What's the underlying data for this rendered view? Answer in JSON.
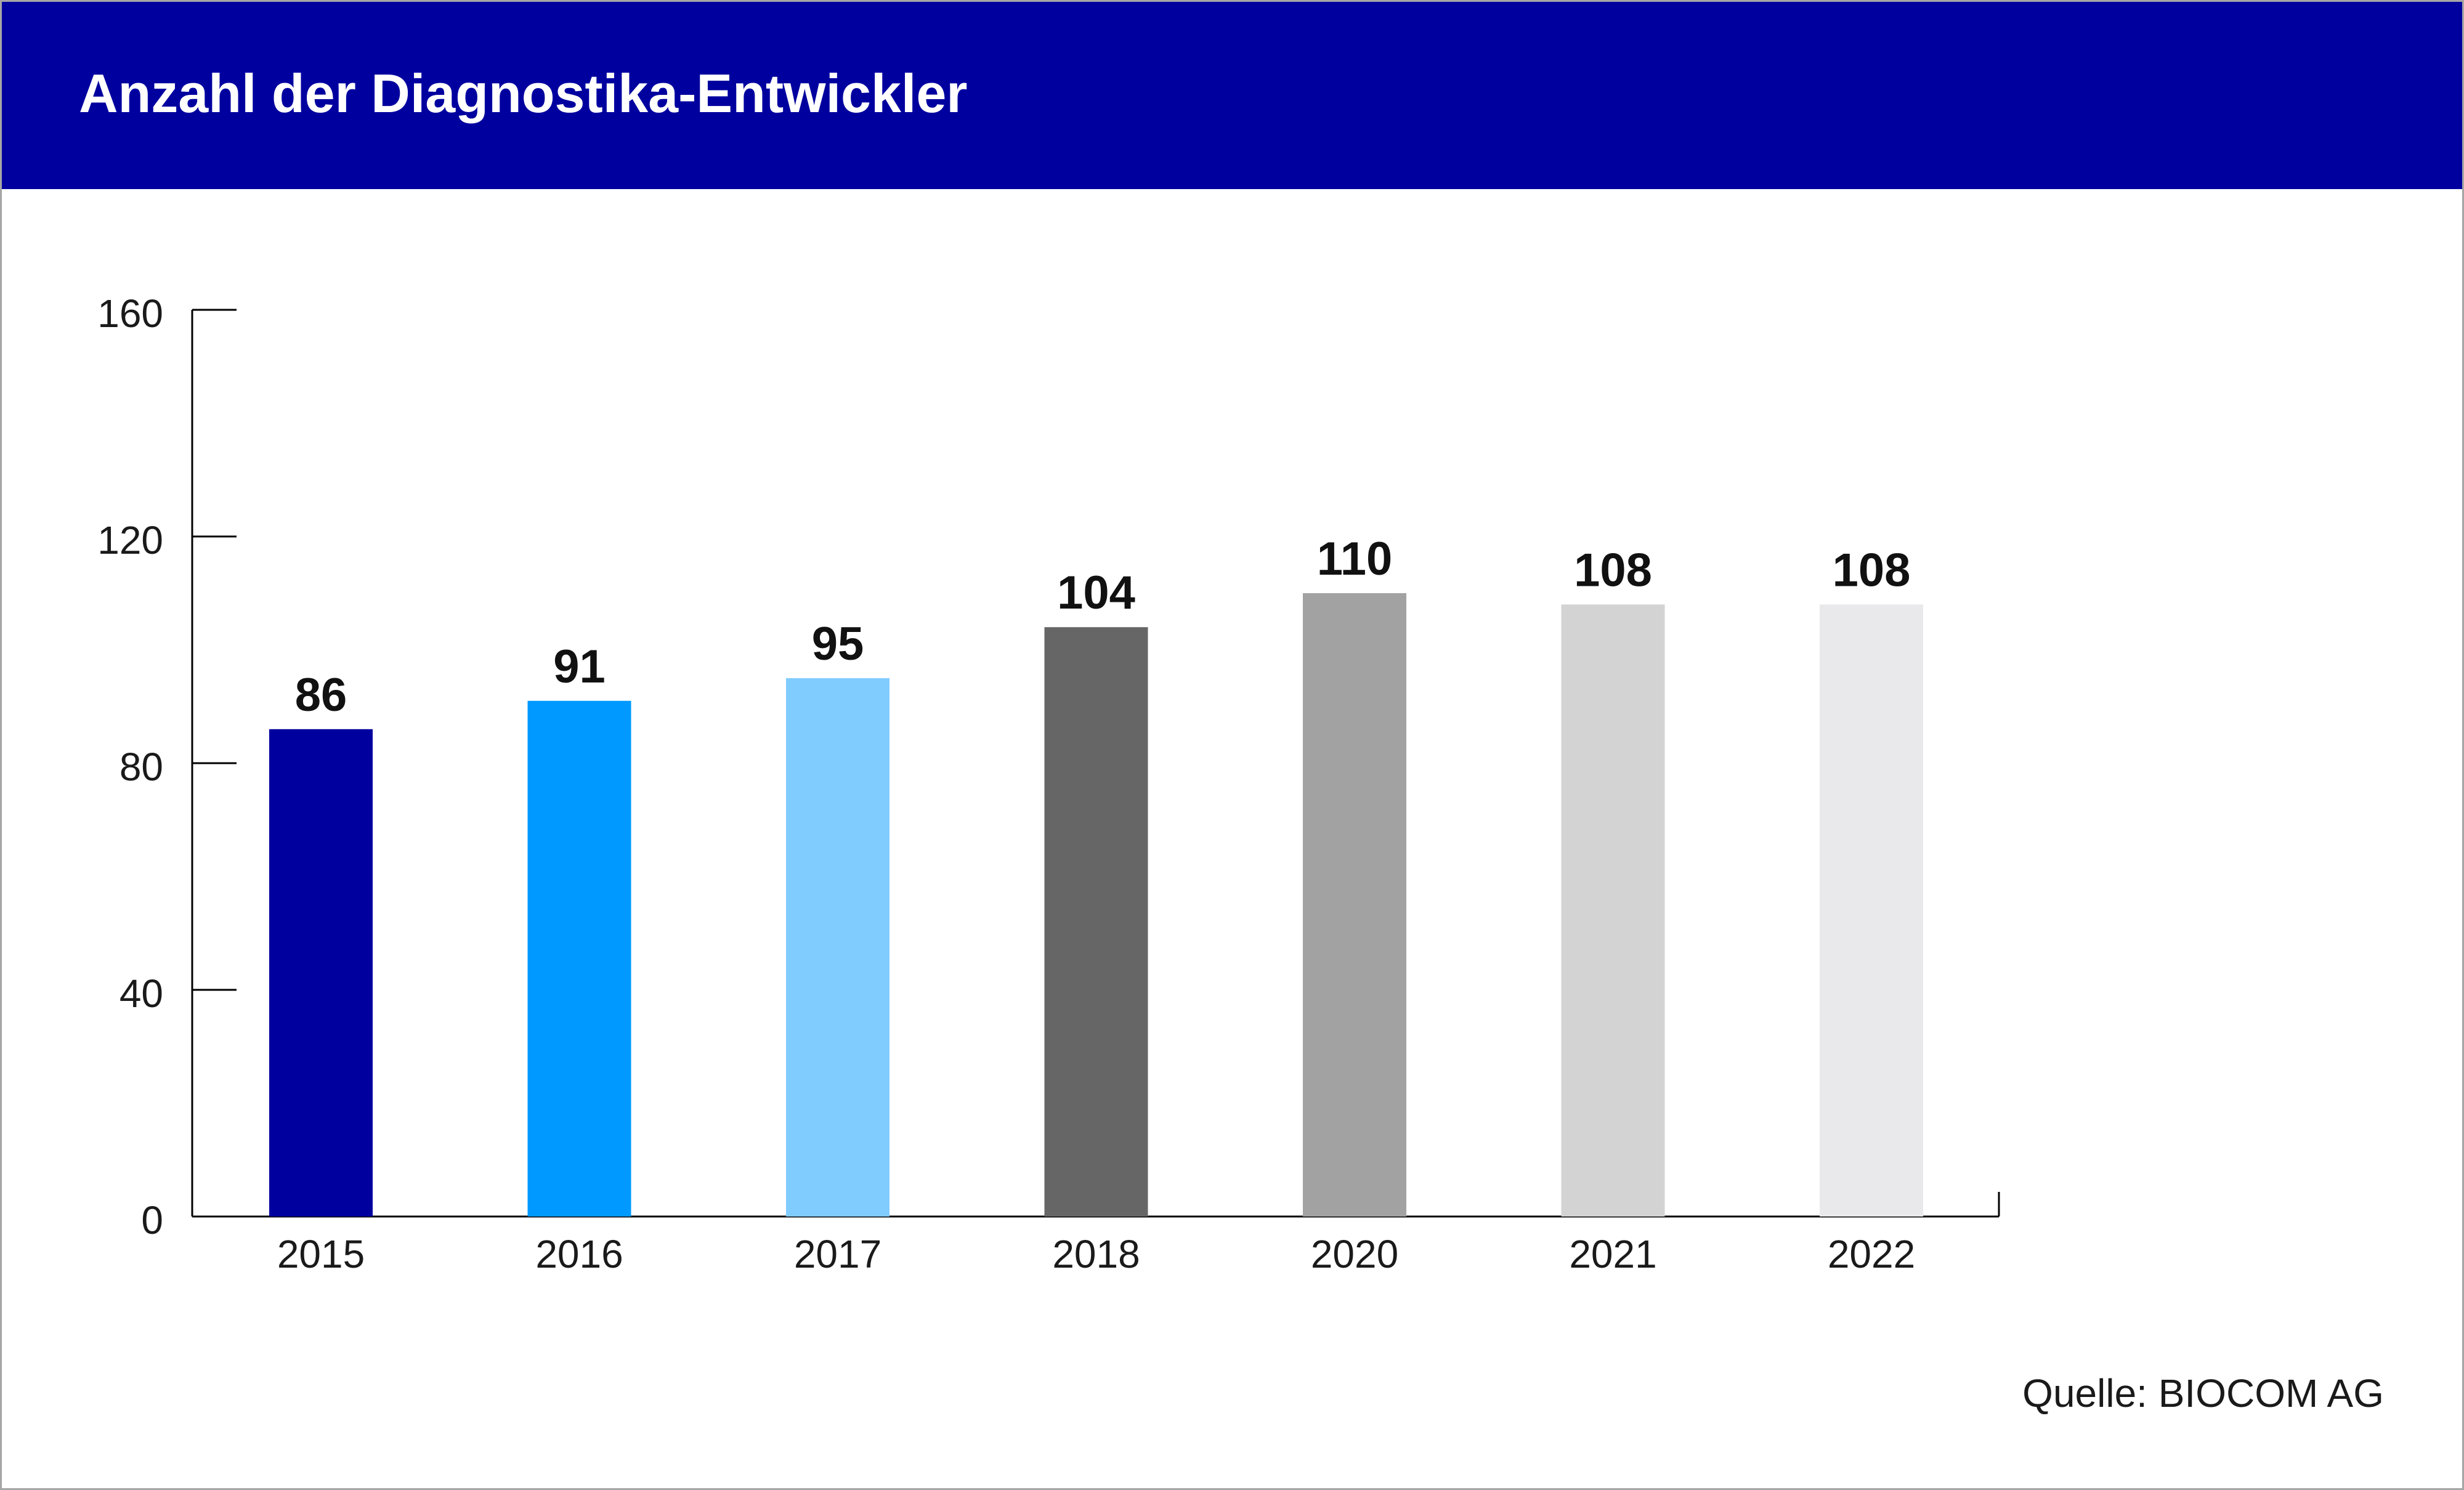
{
  "chart_data": {
    "type": "bar",
    "title": "Anzahl der Diagnostika-Entwickler",
    "categories": [
      "2015",
      "2016",
      "2017",
      "2018",
      "2020",
      "2021",
      "2022"
    ],
    "values": [
      86,
      91,
      95,
      104,
      110,
      108,
      108
    ],
    "data_labels": [
      "86",
      "91",
      "95",
      "104",
      "110",
      "108",
      "108"
    ],
    "bar_colors": [
      "#00009f",
      "#0099ff",
      "#80ccff",
      "#666666",
      "#a2a2a2",
      "#d3d3d3",
      "#e9e9eb"
    ],
    "y_ticks": [
      0,
      40,
      80,
      120,
      160
    ],
    "y_tick_labels": [
      "0",
      "40",
      "80",
      "120",
      "160"
    ],
    "ylim": [
      0,
      160
    ],
    "xlabel": "",
    "ylabel": "",
    "grid": false,
    "legend": "none"
  },
  "source": "Quelle: BIOCOM AG",
  "colors": {
    "header": "#00009f",
    "title_text": "#ffffff",
    "frame": "#a6a6a6",
    "axis": "#000000"
  }
}
